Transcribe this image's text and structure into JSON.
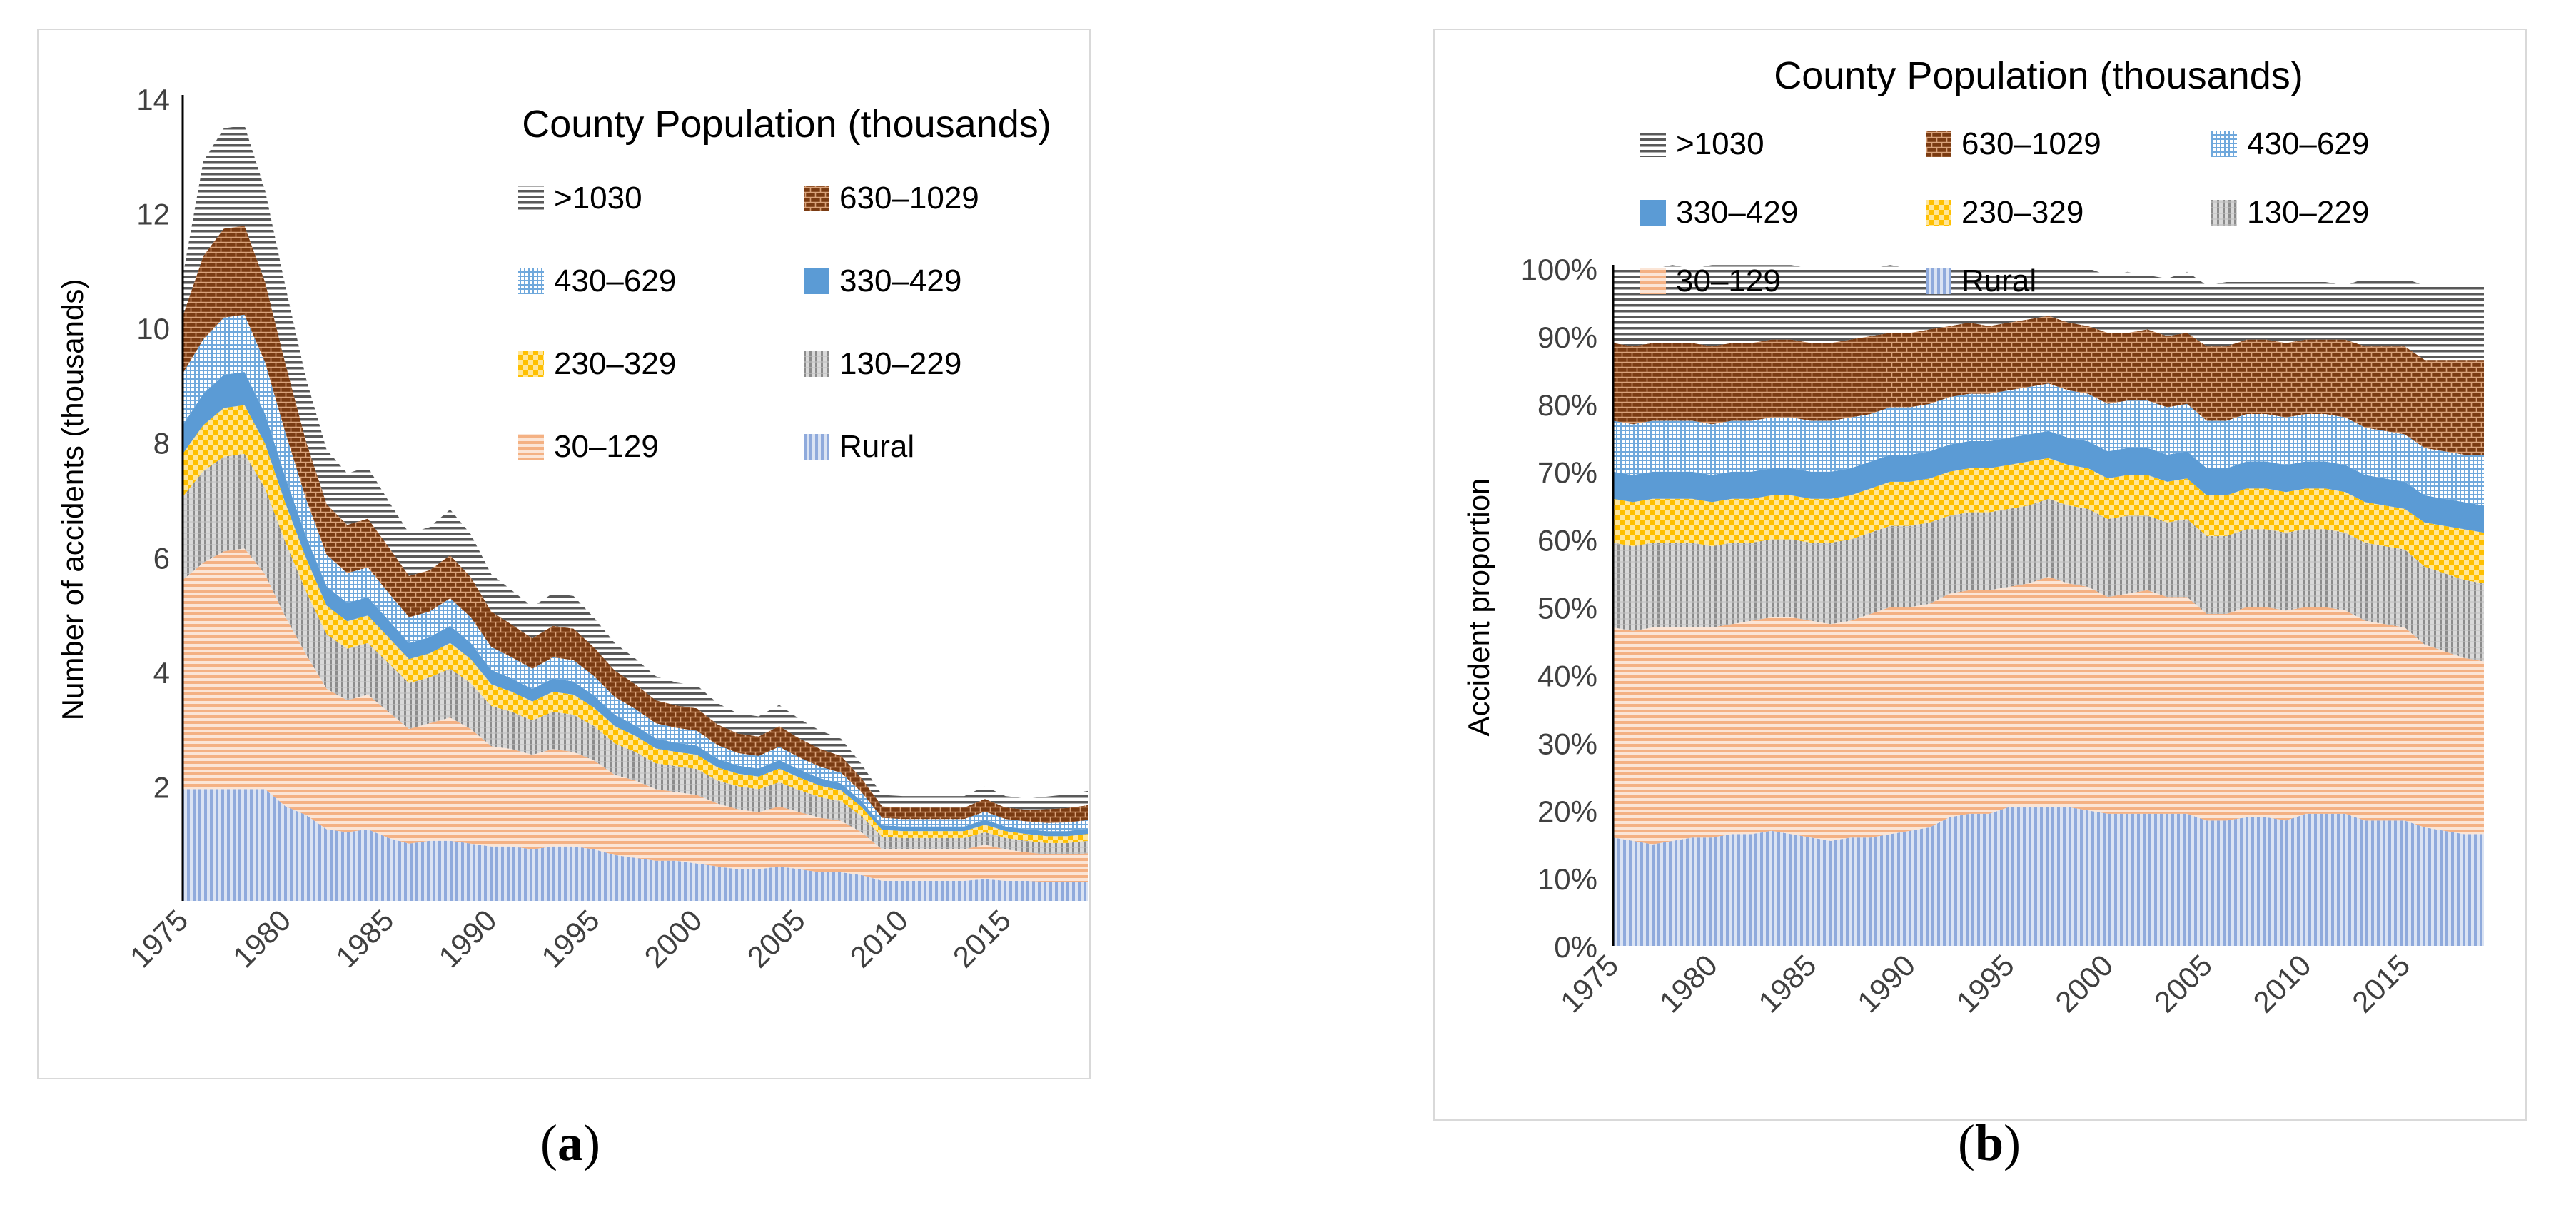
{
  "legend_items": [
    {
      "key": "gt1030",
      "label": ">1030",
      "color": "#7f7f7f",
      "pattern": "hstripes-dark"
    },
    {
      "key": "p630",
      "label": "630–1029",
      "color": "#8b4513",
      "pattern": "brick"
    },
    {
      "key": "p430",
      "label": "430–629",
      "color": "#5b9bd5",
      "pattern": "grid"
    },
    {
      "key": "p330",
      "label": "330–429",
      "color": "#5b9bd5",
      "pattern": "solid"
    },
    {
      "key": "p230",
      "label": "230–329",
      "color": "#ffc000",
      "pattern": "checker"
    },
    {
      "key": "p130",
      "label": "130–229",
      "color": "#a6a6a6",
      "pattern": "vstripes-gray"
    },
    {
      "key": "p30",
      "label": "30–129",
      "color": "#f4b183",
      "pattern": "hstripes"
    },
    {
      "key": "rural",
      "label": "Rural",
      "color": "#8faadc",
      "pattern": "vstripes"
    }
  ],
  "chart_data": [
    {
      "type": "area",
      "stacked": true,
      "panel_label": "a",
      "legend_title": "County Population (thousands)",
      "ylabel": "Number of accidents (thousands)",
      "xlabel": "",
      "ylim": [
        0,
        14
      ],
      "yticks": [
        2,
        4,
        6,
        8,
        10,
        12,
        14
      ],
      "xticks": [
        1975,
        1980,
        1985,
        1990,
        1995,
        2000,
        2005,
        2010,
        2015
      ],
      "x": [
        1975,
        1976,
        1977,
        1978,
        1979,
        1980,
        1981,
        1982,
        1983,
        1984,
        1985,
        1986,
        1987,
        1988,
        1989,
        1990,
        1991,
        1992,
        1993,
        1994,
        1995,
        1996,
        1997,
        1998,
        1999,
        2000,
        2001,
        2002,
        2003,
        2004,
        2005,
        2006,
        2007,
        2008,
        2009,
        2010,
        2011,
        2012,
        2013,
        2014,
        2015,
        2016,
        2017,
        2018,
        2019
      ],
      "series": [
        {
          "name": "Rural",
          "values": [
            1.95,
            1.95,
            1.95,
            1.95,
            1.95,
            1.65,
            1.5,
            1.25,
            1.2,
            1.25,
            1.1,
            1.0,
            1.05,
            1.05,
            1.0,
            0.95,
            0.95,
            0.9,
            0.95,
            0.95,
            0.9,
            0.8,
            0.75,
            0.7,
            0.7,
            0.65,
            0.6,
            0.55,
            0.55,
            0.6,
            0.55,
            0.5,
            0.5,
            0.45,
            0.35,
            0.35,
            0.35,
            0.35,
            0.35,
            0.38,
            0.35,
            0.35,
            0.33,
            0.33,
            0.33
          ]
        },
        {
          "name": "30–129",
          "values": [
            3.65,
            3.95,
            4.15,
            4.2,
            3.75,
            3.3,
            2.8,
            2.45,
            2.3,
            2.35,
            2.2,
            2.0,
            2.05,
            2.15,
            2.0,
            1.75,
            1.7,
            1.65,
            1.7,
            1.65,
            1.55,
            1.4,
            1.35,
            1.25,
            1.2,
            1.2,
            1.1,
            1.05,
            1.0,
            1.05,
            1.0,
            0.95,
            0.9,
            0.75,
            0.55,
            0.55,
            0.55,
            0.55,
            0.55,
            0.6,
            0.55,
            0.5,
            0.48,
            0.48,
            0.5
          ]
        },
        {
          "name": "130–229",
          "values": [
            1.45,
            1.6,
            1.65,
            1.65,
            1.5,
            1.3,
            1.1,
            0.95,
            0.9,
            0.9,
            0.85,
            0.8,
            0.8,
            0.85,
            0.8,
            0.7,
            0.65,
            0.6,
            0.65,
            0.65,
            0.6,
            0.55,
            0.5,
            0.45,
            0.45,
            0.45,
            0.4,
            0.4,
            0.4,
            0.42,
            0.38,
            0.36,
            0.34,
            0.28,
            0.22,
            0.2,
            0.2,
            0.2,
            0.2,
            0.22,
            0.2,
            0.2,
            0.2,
            0.2,
            0.22
          ]
        },
        {
          "name": "230–329",
          "values": [
            0.75,
            0.8,
            0.85,
            0.85,
            0.78,
            0.68,
            0.58,
            0.5,
            0.48,
            0.48,
            0.45,
            0.42,
            0.42,
            0.45,
            0.42,
            0.38,
            0.35,
            0.33,
            0.35,
            0.35,
            0.32,
            0.3,
            0.28,
            0.26,
            0.25,
            0.25,
            0.23,
            0.22,
            0.22,
            0.24,
            0.22,
            0.2,
            0.19,
            0.16,
            0.12,
            0.12,
            0.12,
            0.12,
            0.12,
            0.13,
            0.12,
            0.12,
            0.12,
            0.12,
            0.12
          ]
        },
        {
          "name": "330–429",
          "values": [
            0.5,
            0.55,
            0.58,
            0.58,
            0.52,
            0.45,
            0.38,
            0.34,
            0.32,
            0.32,
            0.3,
            0.28,
            0.28,
            0.3,
            0.28,
            0.25,
            0.23,
            0.22,
            0.23,
            0.23,
            0.21,
            0.2,
            0.18,
            0.17,
            0.16,
            0.16,
            0.15,
            0.14,
            0.14,
            0.15,
            0.14,
            0.13,
            0.12,
            0.1,
            0.08,
            0.08,
            0.08,
            0.08,
            0.08,
            0.09,
            0.08,
            0.08,
            0.09,
            0.09,
            0.09
          ]
        },
        {
          "name": "430–629",
          "values": [
            0.9,
            0.95,
            1.0,
            1.0,
            0.9,
            0.78,
            0.65,
            0.55,
            0.52,
            0.52,
            0.48,
            0.45,
            0.45,
            0.48,
            0.45,
            0.4,
            0.37,
            0.35,
            0.37,
            0.37,
            0.34,
            0.31,
            0.29,
            0.27,
            0.26,
            0.26,
            0.24,
            0.22,
            0.22,
            0.23,
            0.21,
            0.2,
            0.19,
            0.16,
            0.13,
            0.13,
            0.13,
            0.13,
            0.13,
            0.14,
            0.13,
            0.14,
            0.14,
            0.15,
            0.15
          ]
        },
        {
          "name": "630–1029",
          "values": [
            1.0,
            1.45,
            1.55,
            1.55,
            1.4,
            1.2,
            1.0,
            0.88,
            0.84,
            0.85,
            0.8,
            0.72,
            0.72,
            0.75,
            0.7,
            0.62,
            0.57,
            0.53,
            0.55,
            0.55,
            0.5,
            0.46,
            0.43,
            0.4,
            0.39,
            0.39,
            0.36,
            0.34,
            0.34,
            0.36,
            0.33,
            0.31,
            0.29,
            0.24,
            0.2,
            0.2,
            0.2,
            0.2,
            0.2,
            0.22,
            0.2,
            0.2,
            0.24,
            0.25,
            0.26
          ]
        },
        {
          "name": ">1030",
          "values": [
            0.7,
            1.65,
            1.75,
            1.75,
            1.6,
            1.35,
            1.1,
            0.95,
            0.9,
            0.9,
            0.8,
            0.75,
            0.75,
            0.8,
            0.75,
            0.65,
            0.6,
            0.55,
            0.57,
            0.57,
            0.52,
            0.48,
            0.45,
            0.42,
            0.4,
            0.4,
            0.37,
            0.35,
            0.35,
            0.37,
            0.34,
            0.32,
            0.3,
            0.25,
            0.2,
            0.2,
            0.2,
            0.2,
            0.2,
            0.22,
            0.2,
            0.2,
            0.22,
            0.24,
            0.25
          ]
        }
      ]
    },
    {
      "type": "area",
      "stacked": true,
      "percent": true,
      "panel_label": "b",
      "legend_title": "County Population (thousands)",
      "ylabel": "Accident proportion",
      "xlabel": "",
      "ylim": [
        0,
        100
      ],
      "yticks": [
        "0%",
        "10%",
        "20%",
        "30%",
        "40%",
        "50%",
        "60%",
        "70%",
        "80%",
        "90%",
        "100%"
      ],
      "xticks": [
        1975,
        1980,
        1985,
        1990,
        1995,
        2000,
        2005,
        2010,
        2015
      ],
      "x": [
        1975,
        1976,
        1977,
        1978,
        1979,
        1980,
        1981,
        1982,
        1983,
        1984,
        1985,
        1986,
        1987,
        1988,
        1989,
        1990,
        1991,
        1992,
        1993,
        1994,
        1995,
        1996,
        1997,
        1998,
        1999,
        2000,
        2001,
        2002,
        2003,
        2004,
        2005,
        2006,
        2007,
        2008,
        2009,
        2010,
        2011,
        2012,
        2013,
        2014,
        2015,
        2016,
        2017,
        2018,
        2019
      ],
      "series": [
        {
          "name": "Rural",
          "values": [
            16,
            15.5,
            15,
            15.5,
            16,
            16,
            16.5,
            16.5,
            17,
            16.5,
            16,
            15.5,
            16,
            16,
            16.5,
            17,
            17.5,
            19,
            19.5,
            19.5,
            20.5,
            20.5,
            20.5,
            20.5,
            20,
            19.5,
            19.5,
            19.5,
            19.5,
            19.5,
            18.5,
            18.5,
            19,
            19,
            18.5,
            19.5,
            19.5,
            19.5,
            18.5,
            18.5,
            18.5,
            17.5,
            17,
            16.5,
            16.5
          ]
        },
        {
          "name": "30–129",
          "values": [
            31,
            31,
            32,
            31.5,
            31,
            31,
            31,
            31.5,
            31.5,
            32,
            32,
            32,
            32,
            33,
            33.5,
            33,
            33,
            33,
            33,
            33,
            32.5,
            33,
            34,
            33,
            33,
            32,
            32.5,
            33,
            32,
            32,
            30.5,
            30.5,
            31,
            31,
            31,
            30.5,
            30.5,
            30,
            29.5,
            29,
            28.5,
            27,
            26.5,
            26,
            25.5
          ]
        },
        {
          "name": "130–229",
          "values": [
            12.5,
            12.5,
            12.5,
            12.5,
            12.5,
            12,
            12,
            11.5,
            11.5,
            11.5,
            11.5,
            12,
            12,
            12,
            12,
            12,
            12,
            11.5,
            11.5,
            11.5,
            11.5,
            11.5,
            11.5,
            11.5,
            11.5,
            11.5,
            11.5,
            11,
            11,
            11.5,
            11.5,
            11.5,
            11.5,
            11.5,
            11.5,
            11.5,
            11.5,
            11.5,
            11.5,
            11.5,
            11.5,
            11.5,
            11.5,
            11.5,
            11.5
          ]
        },
        {
          "name": "230–329",
          "values": [
            6.5,
            6.5,
            6.5,
            6.5,
            6.5,
            6.5,
            6.5,
            6.5,
            6.5,
            6.5,
            6.5,
            6.5,
            6.5,
            6.5,
            6.5,
            6.5,
            6.5,
            6.5,
            6.5,
            6.5,
            6.5,
            6.5,
            6,
            6,
            6,
            6,
            6,
            6,
            6,
            6,
            6,
            6,
            6,
            6,
            6,
            6,
            6,
            6,
            6,
            6,
            6,
            6.5,
            7,
            7.5,
            7.5
          ]
        },
        {
          "name": "330–429",
          "values": [
            4,
            4,
            4,
            4,
            4,
            4,
            4,
            4,
            4,
            4,
            4,
            4,
            4,
            4,
            4,
            4,
            4,
            4,
            4,
            4,
            4,
            4,
            4,
            4,
            4,
            4,
            4,
            4,
            4,
            4,
            4,
            4,
            4,
            4,
            4,
            4,
            4,
            4,
            4,
            4,
            4,
            4,
            4,
            4,
            4
          ]
        },
        {
          "name": "430–629",
          "values": [
            7.5,
            7.5,
            7.5,
            7.5,
            7.5,
            7.5,
            7.5,
            7.5,
            7.5,
            7.5,
            7.5,
            7.5,
            7.5,
            7,
            7,
            7,
            7,
            7,
            7,
            7,
            7,
            7,
            7,
            7,
            7,
            7,
            7,
            7,
            7,
            7,
            7,
            7,
            7,
            7,
            7,
            7,
            7,
            7,
            7,
            7,
            7,
            7,
            7,
            7,
            7.5
          ]
        },
        {
          "name": "630–1029",
          "values": [
            11.5,
            11.5,
            11.5,
            11.5,
            11.5,
            11.5,
            11.5,
            11.5,
            11.5,
            11.5,
            11.5,
            11.5,
            11.5,
            11.5,
            11,
            11,
            11,
            10.5,
            10.5,
            10,
            10,
            10,
            10,
            10,
            10,
            10.5,
            10,
            10.5,
            10.5,
            10.5,
            11,
            11,
            11,
            11,
            11,
            11,
            11,
            11.5,
            12,
            12.5,
            13,
            13,
            13.5,
            14,
            14
          ]
        },
        {
          "name": ">1030",
          "values": [
            11,
            11.5,
            11,
            11.5,
            11,
            12,
            11.5,
            11.5,
            11,
            11,
            11,
            11,
            10.5,
            10,
            10,
            9.5,
            9,
            8.5,
            8,
            8.5,
            8,
            7.5,
            7,
            8,
            8.5,
            8.5,
            9,
            8,
            8.5,
            9,
            9,
            9.5,
            8.5,
            8.5,
            9,
            8.5,
            8.5,
            8,
            10,
            10,
            10,
            11,
            11,
            11,
            11
          ]
        }
      ]
    }
  ]
}
